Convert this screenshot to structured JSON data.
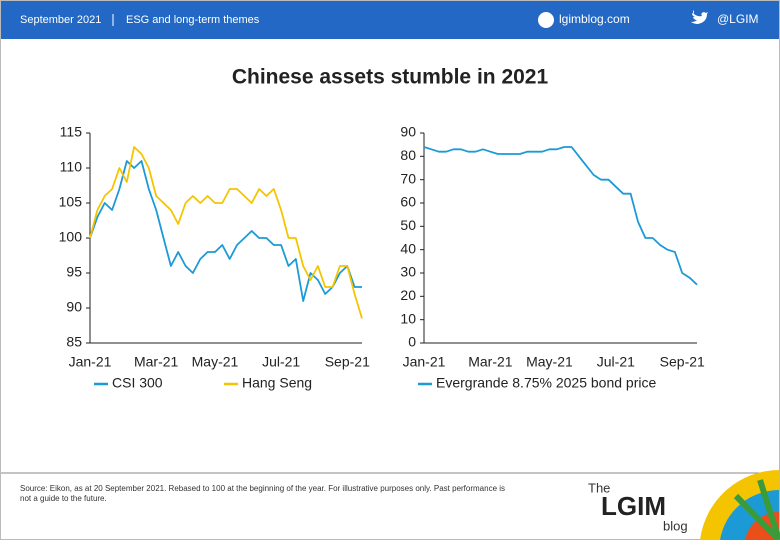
{
  "header": {
    "date": "September 2021",
    "section": "ESG and long-term themes",
    "site": "lgimblog.com",
    "handle": "@LGIM"
  },
  "title": "Chinese assets stumble in 2021",
  "chart_data": [
    {
      "type": "line",
      "categories": [
        "Jan-21",
        null,
        null,
        null,
        null,
        null,
        null,
        null,
        null,
        "Mar-21",
        null,
        null,
        null,
        null,
        null,
        null,
        null,
        "May-21",
        null,
        null,
        null,
        null,
        null,
        null,
        null,
        null,
        "Jul-21",
        null,
        null,
        null,
        null,
        null,
        null,
        null,
        null,
        "Sep-21",
        null,
        null
      ],
      "series": [
        {
          "name": "CSI 300",
          "color": "#1b9ad6",
          "values": [
            100,
            103,
            105,
            104,
            107,
            111,
            110,
            111,
            107,
            104,
            100,
            96,
            98,
            96,
            95,
            97,
            98,
            98,
            99,
            97,
            99,
            100,
            101,
            100,
            100,
            99,
            99,
            96,
            97,
            91,
            95,
            94,
            92,
            93,
            95,
            96,
            93,
            93
          ]
        },
        {
          "name": "Hang Seng",
          "color": "#f5c400",
          "values": [
            100,
            104,
            106,
            107,
            110,
            108,
            113,
            112,
            110,
            106,
            105,
            104,
            102,
            105,
            106,
            105,
            106,
            105,
            105,
            107,
            107,
            106,
            105,
            107,
            106,
            107,
            104,
            100,
            100,
            96,
            94,
            96,
            93,
            93,
            96,
            96,
            92,
            88.5
          ]
        }
      ],
      "ylim": [
        85,
        115
      ],
      "yticks": [
        85,
        90,
        95,
        100,
        105,
        110,
        115
      ],
      "grid": false
    },
    {
      "type": "line",
      "categories": [
        "Jan-21",
        null,
        null,
        null,
        null,
        null,
        null,
        null,
        null,
        "Mar-21",
        null,
        null,
        null,
        null,
        null,
        null,
        null,
        "May-21",
        null,
        null,
        null,
        null,
        null,
        null,
        null,
        null,
        "Jul-21",
        null,
        null,
        null,
        null,
        null,
        null,
        null,
        null,
        "Sep-21",
        null,
        null
      ],
      "series": [
        {
          "name": "Evergrande 8.75% 2025 bond price",
          "color": "#1b9ad6",
          "values": [
            84,
            83,
            82,
            82,
            83,
            83,
            82,
            82,
            83,
            82,
            81,
            81,
            81,
            81,
            82,
            82,
            82,
            83,
            83,
            84,
            84,
            80,
            76,
            72,
            70,
            70,
            67,
            64,
            64,
            52,
            45,
            45,
            42,
            40,
            39,
            30,
            28,
            25
          ]
        }
      ],
      "ylim": [
        0,
        90
      ],
      "yticks": [
        0,
        10,
        20,
        30,
        40,
        50,
        60,
        70,
        80,
        90
      ],
      "grid": false
    }
  ],
  "footer": {
    "source": "Source: Eikon, as at 20 September 2021. Rebased to 100 at the beginning of the year. For illustrative purposes only. Past performance is",
    "source2": "not a guide to the future.",
    "logo_the": "The",
    "logo_main": "LGIM",
    "logo_blog": "blog"
  }
}
